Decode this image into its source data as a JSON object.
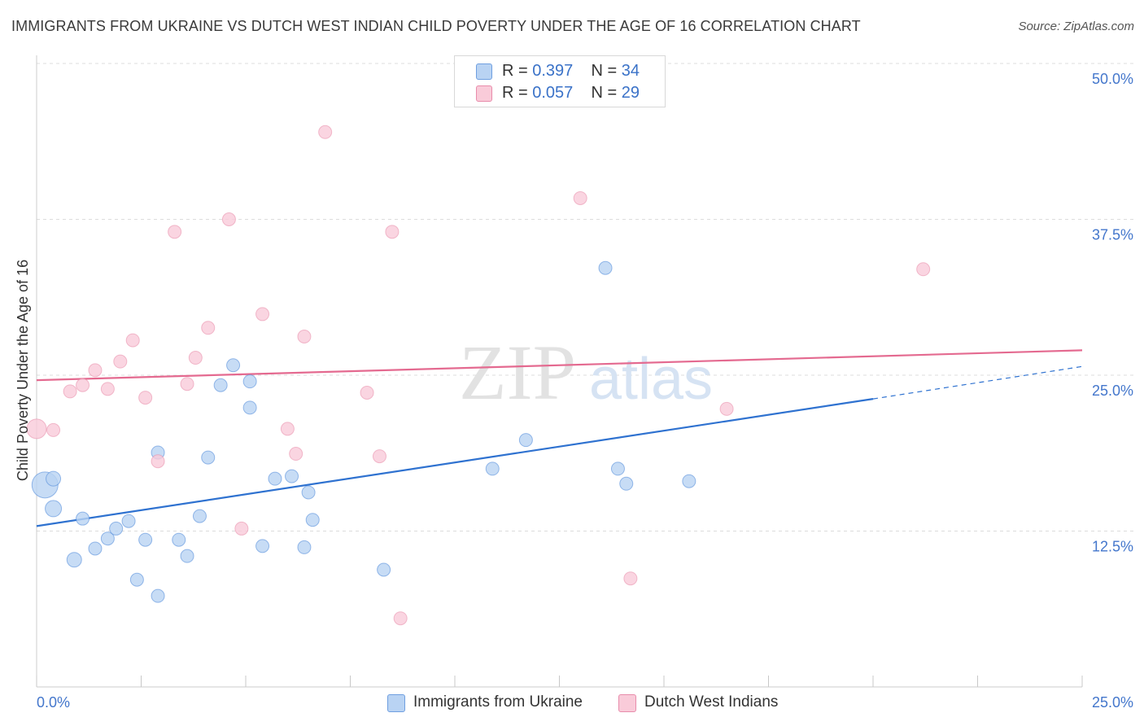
{
  "title": "IMMIGRANTS FROM UKRAINE VS DUTCH WEST INDIAN CHILD POVERTY UNDER THE AGE OF 16 CORRELATION CHART",
  "source": "Source: ZipAtlas.com",
  "watermark": {
    "zip": "ZIP",
    "atlas": "atlas"
  },
  "legend": {
    "rows": [
      {
        "r_label": "R = ",
        "r_value": "0.397",
        "n_label": "N = ",
        "n_value": "34",
        "color": "#a9c9f0"
      },
      {
        "r_label": "R = ",
        "r_value": "0.057",
        "n_label": "N = ",
        "n_value": "29",
        "color": "#f6bcd0"
      }
    ]
  },
  "bottom_legend": [
    {
      "label": "Immigrants from Ukraine",
      "color": "#a9c9f0"
    },
    {
      "label": "Dutch West Indians",
      "color": "#f6bcd0"
    }
  ],
  "chart_data": {
    "type": "scatter",
    "ylabel": "Child Poverty Under the Age of 16",
    "xlim": [
      0,
      25
    ],
    "ylim": [
      0,
      50
    ],
    "x_tick_labels": [
      "0.0%",
      "25.0%"
    ],
    "y_ticks": [
      12.5,
      25.0,
      37.5,
      50.0
    ],
    "y_tick_labels": [
      "12.5%",
      "25.0%",
      "37.5%",
      "50.0%"
    ],
    "grid": true,
    "series": [
      {
        "name": "Immigrants from Ukraine",
        "color": "#4a86d8",
        "fill": "#b9d3f3",
        "trend": {
          "x0": 0,
          "y0": 12.9,
          "x1": 20.0,
          "y1": 23.1,
          "dash_to_x": 25,
          "dash_to_y": 25.7,
          "color": "#2f72d0"
        },
        "points": [
          [
            0.2,
            16.2,
            16
          ],
          [
            0.4,
            16.7,
            9
          ],
          [
            0.4,
            14.3,
            10
          ],
          [
            0.9,
            10.2,
            9
          ],
          [
            1.1,
            13.5,
            8
          ],
          [
            1.4,
            11.1,
            8
          ],
          [
            1.7,
            11.9,
            8
          ],
          [
            1.9,
            12.7,
            8
          ],
          [
            2.2,
            13.3,
            8
          ],
          [
            2.4,
            8.6,
            8
          ],
          [
            2.6,
            11.8,
            8
          ],
          [
            2.9,
            7.3,
            8
          ],
          [
            2.9,
            18.8,
            8
          ],
          [
            3.4,
            11.8,
            8
          ],
          [
            3.6,
            10.5,
            8
          ],
          [
            3.9,
            13.7,
            8
          ],
          [
            4.1,
            18.4,
            8
          ],
          [
            4.4,
            24.2,
            8
          ],
          [
            4.7,
            25.8,
            8
          ],
          [
            5.1,
            22.4,
            8
          ],
          [
            5.1,
            24.5,
            8
          ],
          [
            5.4,
            11.3,
            8
          ],
          [
            5.7,
            16.7,
            8
          ],
          [
            6.1,
            16.9,
            8
          ],
          [
            6.4,
            11.2,
            8
          ],
          [
            6.5,
            15.6,
            8
          ],
          [
            6.6,
            13.4,
            8
          ],
          [
            8.3,
            9.4,
            8
          ],
          [
            10.9,
            17.5,
            8
          ],
          [
            11.7,
            19.8,
            8
          ],
          [
            13.6,
            33.6,
            8
          ],
          [
            13.9,
            17.5,
            8
          ],
          [
            14.1,
            16.3,
            8
          ],
          [
            15.6,
            16.5,
            8
          ]
        ]
      },
      {
        "name": "Dutch West Indians",
        "color": "#e78aa8",
        "fill": "#f9cbd9",
        "trend": {
          "x0": 0,
          "y0": 24.6,
          "x1": 25,
          "y1": 27.0,
          "color": "#e46a90"
        },
        "points": [
          [
            0.0,
            20.7,
            12
          ],
          [
            0.4,
            20.6,
            8
          ],
          [
            0.8,
            23.7,
            8
          ],
          [
            1.1,
            24.2,
            8
          ],
          [
            1.4,
            25.4,
            8
          ],
          [
            1.7,
            23.9,
            8
          ],
          [
            2.0,
            26.1,
            8
          ],
          [
            2.3,
            27.8,
            8
          ],
          [
            2.6,
            23.2,
            8
          ],
          [
            2.9,
            18.1,
            8
          ],
          [
            3.3,
            36.5,
            8
          ],
          [
            3.6,
            24.3,
            8
          ],
          [
            3.8,
            26.4,
            8
          ],
          [
            4.1,
            28.8,
            8
          ],
          [
            4.6,
            37.5,
            8
          ],
          [
            4.9,
            12.7,
            8
          ],
          [
            5.4,
            29.9,
            8
          ],
          [
            6.0,
            20.7,
            8
          ],
          [
            6.2,
            18.7,
            8
          ],
          [
            6.4,
            28.1,
            8
          ],
          [
            6.9,
            44.5,
            8
          ],
          [
            7.9,
            23.6,
            8
          ],
          [
            8.2,
            18.5,
            8
          ],
          [
            8.5,
            36.5,
            8
          ],
          [
            8.7,
            5.5,
            8
          ],
          [
            13.0,
            39.2,
            8
          ],
          [
            14.2,
            8.7,
            8
          ],
          [
            16.5,
            22.3,
            8
          ],
          [
            21.2,
            33.5,
            8
          ]
        ]
      }
    ]
  }
}
